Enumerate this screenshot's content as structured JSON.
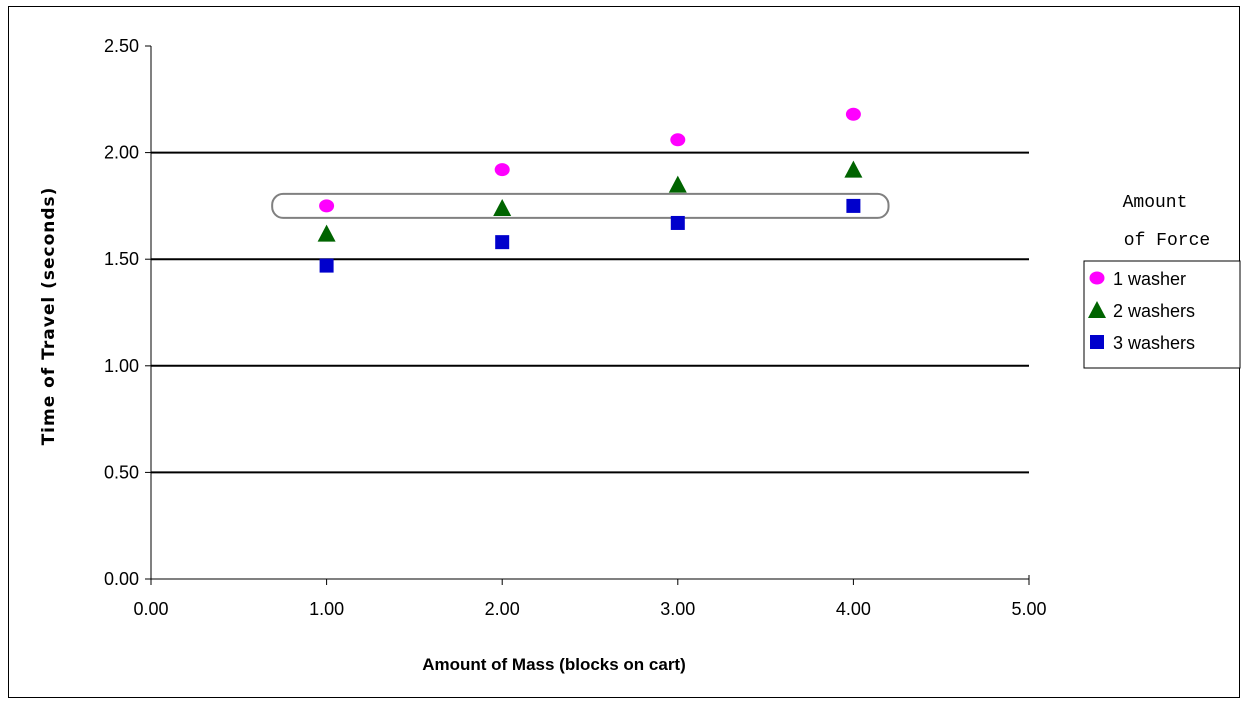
{
  "chart_data": {
    "type": "scatter",
    "title": "",
    "xlabel": "Amount of Mass (blocks on cart)",
    "ylabel": "Time of Travel (seconds)",
    "xlim": [
      0,
      5
    ],
    "ylim": [
      0,
      2.5
    ],
    "x_ticks": [
      "0.00",
      "1.00",
      "2.00",
      "3.00",
      "4.00",
      "5.00"
    ],
    "y_ticks": [
      "0.00",
      "0.50",
      "1.00",
      "1.50",
      "2.00",
      "2.50"
    ],
    "grid": "horizontal",
    "legend_title_line1": "Amount",
    "legend_title_line2": "of Force",
    "legend_placement": "right",
    "annotation": "rounded rectangle highlighting the 1.75-second level across the series",
    "highlight_value": 1.75,
    "series": [
      {
        "name": "1 washer",
        "marker": "circle",
        "color": "#ff00ff",
        "x": [
          1,
          2,
          3,
          4
        ],
        "y": [
          1.75,
          1.92,
          2.06,
          2.18
        ]
      },
      {
        "name": "2 washers",
        "marker": "triangle",
        "color": "#006400",
        "x": [
          1,
          2,
          3,
          4
        ],
        "y": [
          1.62,
          1.74,
          1.85,
          1.92
        ]
      },
      {
        "name": "3 washers",
        "marker": "square",
        "color": "#0000cc",
        "x": [
          1,
          2,
          3,
          4
        ],
        "y": [
          1.47,
          1.58,
          1.67,
          1.75
        ]
      }
    ]
  }
}
